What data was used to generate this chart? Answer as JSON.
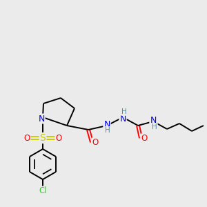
{
  "background_color": "#ebebeb",
  "atom_colors": {
    "C": "#000000",
    "N": "#0000ee",
    "O": "#ff0000",
    "S": "#cccc00",
    "Cl": "#33cc33",
    "H": "#558899"
  },
  "figsize": [
    3.0,
    3.0
  ],
  "dpi": 100,
  "bond_lw": 1.4,
  "font_size": 8.5
}
